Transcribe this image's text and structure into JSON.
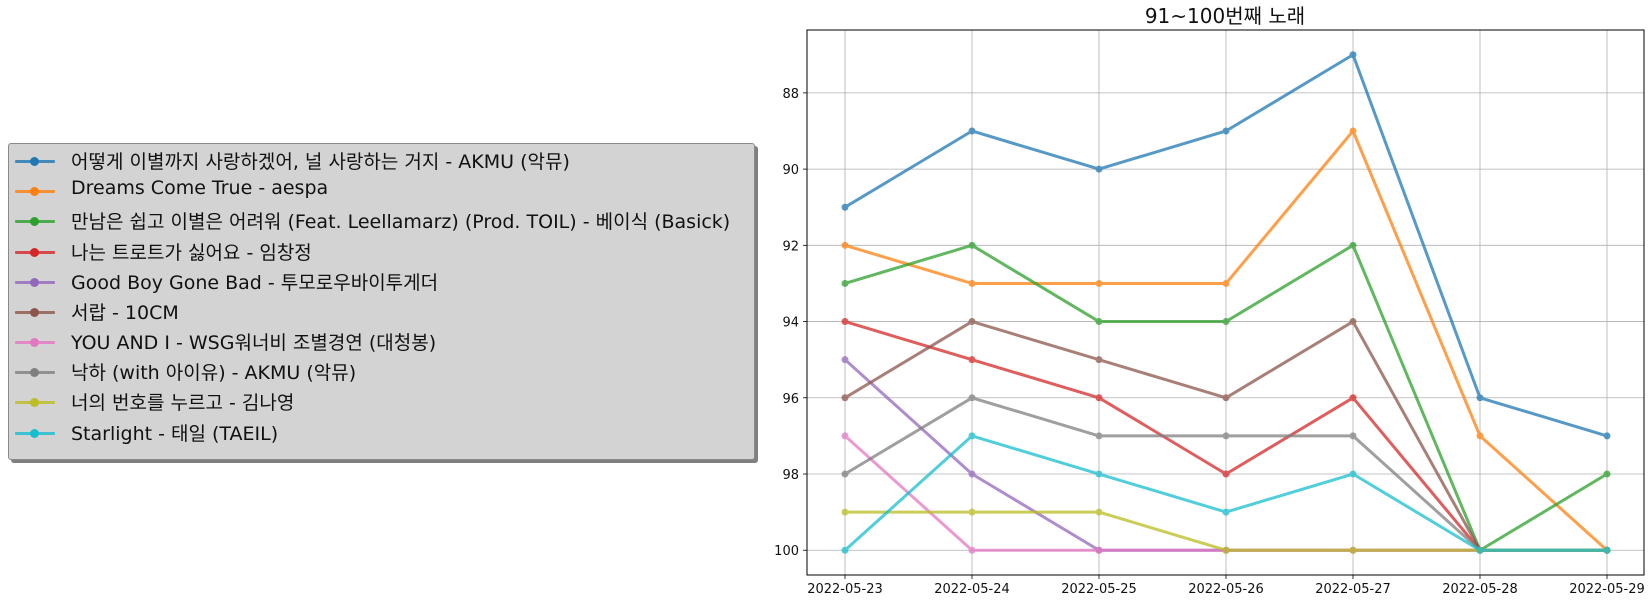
{
  "chart_data": {
    "type": "line",
    "title": "91~100번째 노래",
    "xlabel": "",
    "ylabel": "",
    "x": [
      "2022-05-23",
      "2022-05-24",
      "2022-05-25",
      "2022-05-26",
      "2022-05-27",
      "2022-05-28",
      "2022-05-29"
    ],
    "ylim": [
      100.65,
      86.35
    ],
    "y_inverted": true,
    "yticks": [
      88,
      90,
      92,
      94,
      96,
      98,
      100
    ],
    "grid": true,
    "legend_position": "left, outside plot",
    "series": [
      {
        "name": "어떻게 이별까지 사랑하겠어, 널 사랑하는 거지 - AKMU (악뮤)",
        "color": "#1f77b4",
        "values": [
          91,
          89,
          90,
          89,
          87,
          96,
          97
        ]
      },
      {
        "name": "Dreams Come True - aespa",
        "color": "#ff7f0e",
        "values": [
          92,
          93,
          93,
          93,
          89,
          97,
          100
        ]
      },
      {
        "name": "만남은 쉽고 이별은 어려워 (Feat. Leellamarz) (Prod. TOIL) - 베이식 (Basick)",
        "color": "#2ca02c",
        "values": [
          93,
          92,
          94,
          94,
          92,
          100,
          98
        ]
      },
      {
        "name": "나는 트로트가 싫어요 - 임창정",
        "color": "#d62728",
        "values": [
          94,
          95,
          96,
          98,
          96,
          100,
          100
        ]
      },
      {
        "name": "Good Boy Gone Bad - 투모로우바이투게더",
        "color": "#9467bd",
        "values": [
          95,
          98,
          100,
          100,
          100,
          100,
          100
        ]
      },
      {
        "name": "서랍 - 10CM",
        "color": "#8c564b",
        "values": [
          96,
          94,
          95,
          96,
          94,
          100,
          100
        ]
      },
      {
        "name": "YOU AND I - WSG워너비 조별경연 (대청봉)",
        "color": "#e377c2",
        "values": [
          97,
          100,
          100,
          100,
          100,
          100,
          100
        ]
      },
      {
        "name": "낙하 (with 아이유) - AKMU (악뮤)",
        "color": "#7f7f7f",
        "values": [
          98,
          96,
          97,
          97,
          97,
          100,
          100
        ]
      },
      {
        "name": "너의 번호를 누르고 - 김나영",
        "color": "#bcbd22",
        "values": [
          99,
          99,
          99,
          100,
          100,
          100,
          100
        ]
      },
      {
        "name": "Starlight - 태일 (TAEIL)",
        "color": "#17becf",
        "values": [
          100,
          97,
          98,
          99,
          98,
          100,
          100
        ]
      }
    ]
  }
}
